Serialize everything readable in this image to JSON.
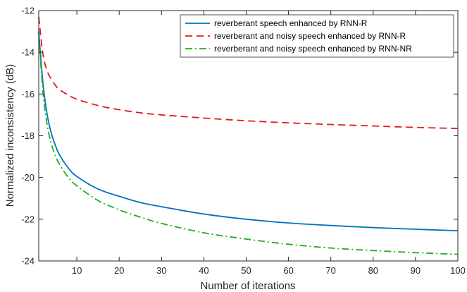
{
  "chart_data": {
    "type": "line",
    "xlabel": "Number of iterations",
    "ylabel": "Normalized inconsistency (dB)",
    "xlim": [
      1,
      100
    ],
    "ylim": [
      -24,
      -12
    ],
    "x_ticks": [
      10,
      20,
      30,
      40,
      50,
      60,
      70,
      80,
      90,
      100
    ],
    "y_ticks": [
      -24,
      -22,
      -20,
      -18,
      -16,
      -14,
      -12
    ],
    "x_tick_labels": [
      "10",
      "20",
      "30",
      "40",
      "50",
      "60",
      "70",
      "80",
      "90",
      "100"
    ],
    "y_tick_labels": [
      "-24",
      "-22",
      "-20",
      "-18",
      "-16",
      "-14",
      "-12"
    ],
    "grid": false,
    "legend_position": "top-right",
    "series": [
      {
        "name": "reverberant speech enhanced by RNN-R",
        "color": "#0072BD",
        "line_style": "solid",
        "x": [
          1,
          2,
          3,
          4,
          5,
          6,
          8,
          10,
          15,
          20,
          25,
          30,
          40,
          50,
          60,
          70,
          80,
          90,
          100
        ],
        "y": [
          -13.0,
          -15.5,
          -17.0,
          -17.9,
          -18.5,
          -18.95,
          -19.55,
          -19.95,
          -20.55,
          -20.9,
          -21.2,
          -21.4,
          -21.75,
          -22.0,
          -22.18,
          -22.3,
          -22.4,
          -22.48,
          -22.55
        ]
      },
      {
        "name": "reverberant and noisy speech enhanced by RNN-R",
        "color": "#E31A1C",
        "line_style": "dashed",
        "x": [
          1,
          2,
          3,
          4,
          5,
          6,
          8,
          10,
          15,
          20,
          25,
          30,
          40,
          50,
          60,
          70,
          80,
          90,
          100
        ],
        "y": [
          -12.3,
          -14.1,
          -14.9,
          -15.3,
          -15.6,
          -15.8,
          -16.05,
          -16.25,
          -16.55,
          -16.75,
          -16.9,
          -17.0,
          -17.15,
          -17.28,
          -17.38,
          -17.46,
          -17.53,
          -17.6,
          -17.65
        ]
      },
      {
        "name": "reverberant and noisy speech enhanced by RNN-NR",
        "color": "#1CB01C",
        "line_style": "dashdot",
        "x": [
          1,
          2,
          3,
          4,
          5,
          6,
          8,
          10,
          15,
          20,
          25,
          30,
          40,
          50,
          60,
          70,
          80,
          90,
          100
        ],
        "y": [
          -13.1,
          -15.9,
          -17.5,
          -18.4,
          -19.0,
          -19.4,
          -20.0,
          -20.4,
          -21.1,
          -21.55,
          -21.9,
          -22.2,
          -22.65,
          -22.95,
          -23.2,
          -23.38,
          -23.5,
          -23.6,
          -23.68
        ]
      }
    ]
  }
}
